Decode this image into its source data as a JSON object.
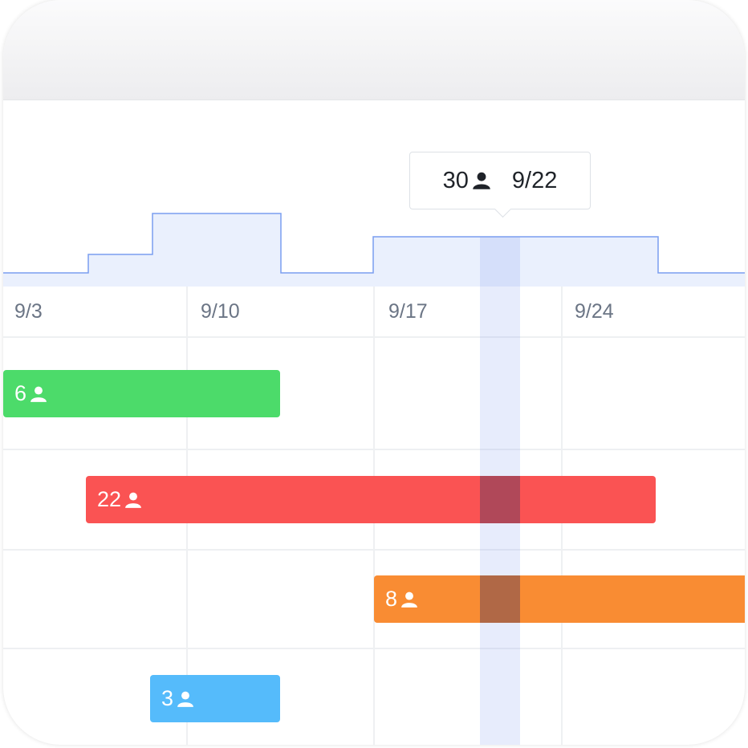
{
  "tooltip": {
    "count": "30",
    "date": "9/22"
  },
  "timeline": {
    "dates": [
      "9/3",
      "9/10",
      "9/17",
      "9/24"
    ]
  },
  "tasks": [
    {
      "label": "6"
    },
    {
      "label": "22"
    },
    {
      "label": "8"
    },
    {
      "label": "3"
    }
  ]
}
